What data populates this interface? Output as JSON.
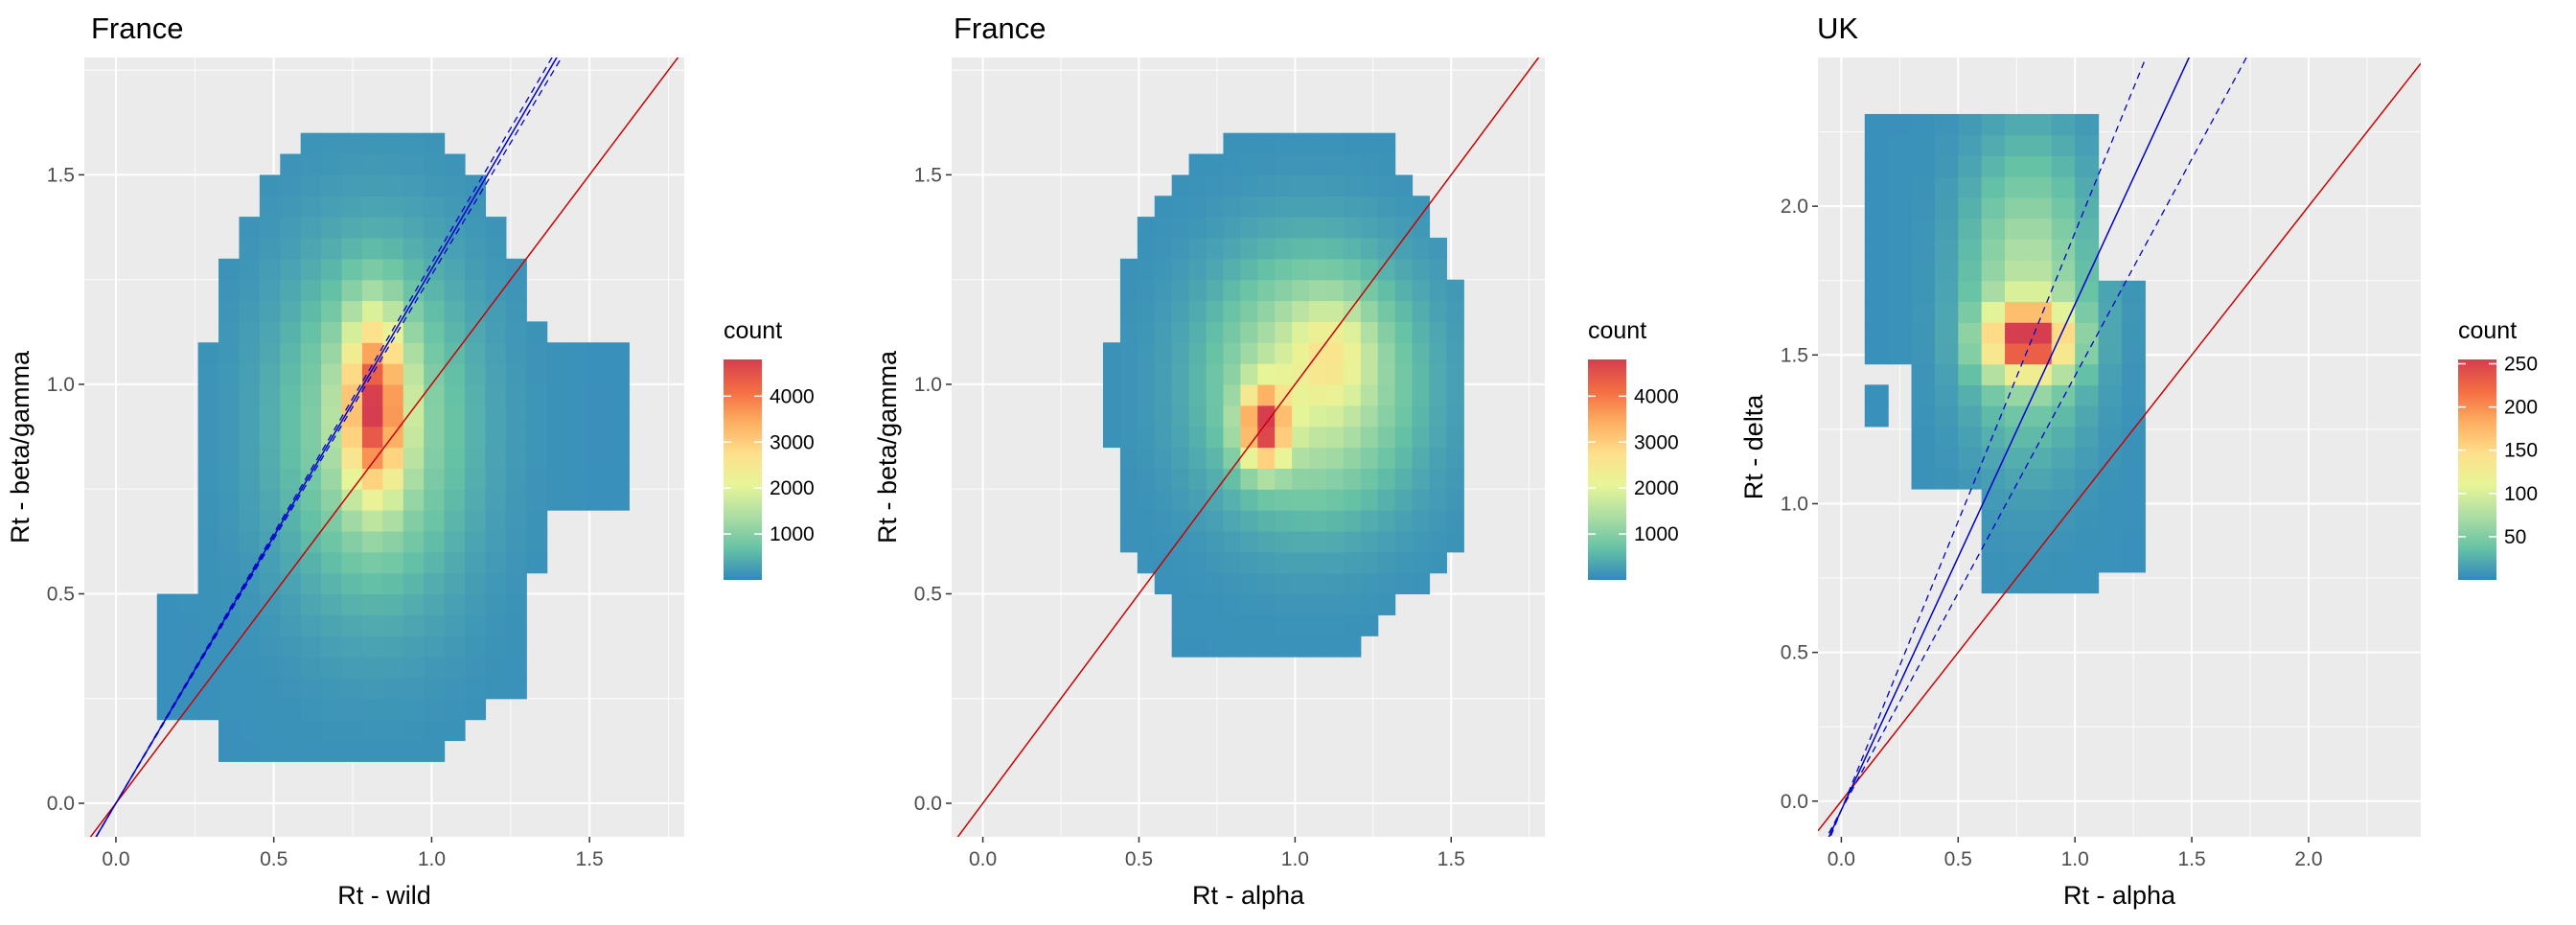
{
  "palette": [
    "#3288bd",
    "#66c2a5",
    "#abdda4",
    "#e6f598",
    "#fee08b",
    "#fdae61",
    "#f46d43",
    "#d53e4f"
  ],
  "colors": {
    "panel_bg": "#ebebeb",
    "grid": "#ffffff",
    "identity_line": "#cc0000",
    "fit_line": "#0000cc"
  },
  "chart_data": [
    {
      "type": "heatmap",
      "title": "France",
      "xlabel": "Rt - wild",
      "ylabel": "Rt - beta/gamma",
      "xlim": [
        -0.1,
        1.8
      ],
      "ylim": [
        -0.08,
        1.78
      ],
      "xticks": [
        "0.0",
        "0.5",
        "1.0",
        "1.5"
      ],
      "yticks": [
        "0.0",
        "0.5",
        "1.0",
        "1.5"
      ],
      "bin": {
        "dx": 0.065,
        "dy": 0.05
      },
      "legend": {
        "title": "count",
        "min": 0,
        "max": 4800,
        "ticks": [
          "1000",
          "2000",
          "3000",
          "4000"
        ],
        "placement": "right"
      },
      "peak": {
        "x": 0.82,
        "y": 0.95,
        "count": 4750
      },
      "identity_line": {
        "slope": 1,
        "intercept": 0
      },
      "fit_line": {
        "slope": 1.275,
        "intercept": 0,
        "ci": 0.012
      }
    },
    {
      "type": "heatmap",
      "title": "France",
      "xlabel": "Rt - alpha",
      "ylabel": "Rt - beta/gamma",
      "xlim": [
        -0.1,
        1.8
      ],
      "ylim": [
        -0.08,
        1.78
      ],
      "xticks": [
        "0.0",
        "0.5",
        "1.0",
        "1.5"
      ],
      "yticks": [
        "0.0",
        "0.5",
        "1.0",
        "1.5"
      ],
      "bin": {
        "dx": 0.055,
        "dy": 0.05
      },
      "legend": {
        "title": "count",
        "min": 0,
        "max": 4800,
        "ticks": [
          "1000",
          "2000",
          "3000",
          "4000"
        ],
        "placement": "right"
      },
      "peak": {
        "x": 0.92,
        "y": 0.92,
        "count": 4600
      },
      "identity_line": {
        "slope": 1,
        "intercept": 0
      }
    },
    {
      "type": "heatmap",
      "title": "UK",
      "xlabel": "Rt - alpha",
      "ylabel": "Rt - delta",
      "xlim": [
        -0.1,
        2.48
      ],
      "ylim": [
        -0.12,
        2.5
      ],
      "xticks": [
        "0.0",
        "0.5",
        "1.0",
        "1.5",
        "2.0"
      ],
      "yticks": [
        "0.0",
        "0.5",
        "1.0",
        "1.5",
        "2.0"
      ],
      "bin": {
        "dx": 0.1,
        "dy": 0.07
      },
      "legend": {
        "title": "count",
        "min": 0,
        "max": 255,
        "ticks": [
          "50",
          "100",
          "150",
          "200",
          "250"
        ],
        "placement": "right"
      },
      "peak": {
        "x": 0.8,
        "y": 1.57,
        "count": 255
      },
      "identity_line": {
        "slope": 1,
        "intercept": 0
      },
      "fit_line": {
        "slope": 1.7,
        "intercept": -0.03,
        "ci": 0.2
      }
    }
  ]
}
